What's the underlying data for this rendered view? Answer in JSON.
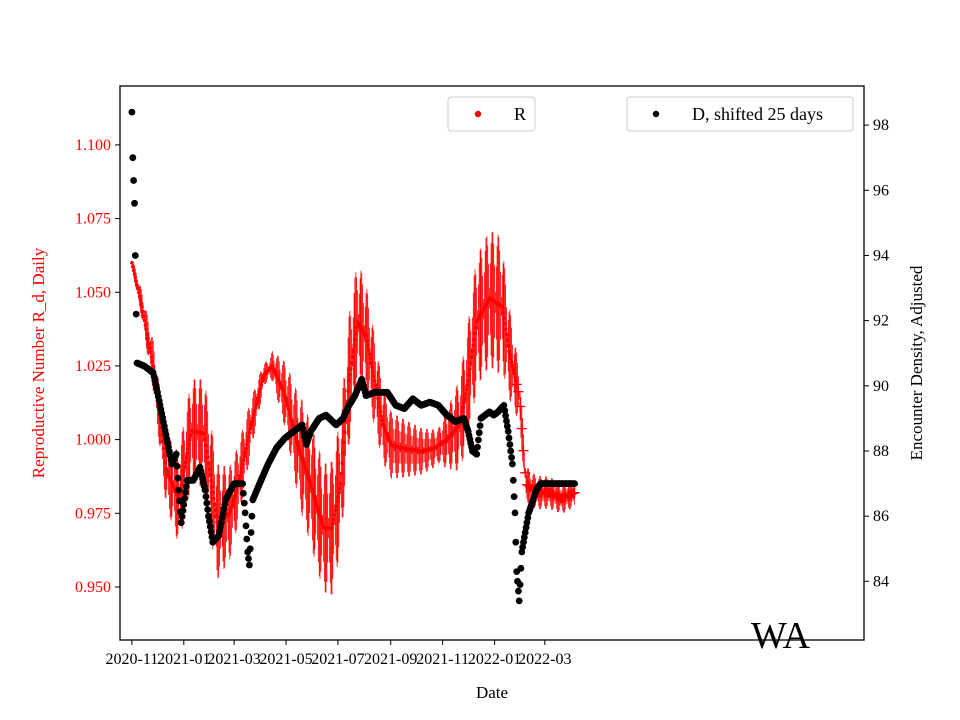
{
  "chart_data": {
    "type": "scatter",
    "region_label": "WA",
    "x_axis": {
      "label": "Date",
      "range_days": [
        -14,
        860
      ],
      "ticks": [
        {
          "label": "2020-11",
          "day": 0
        },
        {
          "label": "2021-01",
          "day": 61
        },
        {
          "label": "2021-03",
          "day": 120
        },
        {
          "label": "2021-05",
          "day": 181
        },
        {
          "label": "2021-07",
          "day": 242
        },
        {
          "label": "2021-09",
          "day": 304
        },
        {
          "label": "2021-11",
          "day": 365
        },
        {
          "label": "2022-01",
          "day": 426
        },
        {
          "label": "2022-03",
          "day": 485
        }
      ]
    },
    "left_axis": {
      "label": "Reproductive Number R_d, Daily",
      "range": [
        0.932,
        1.12
      ],
      "ticks": [
        "0.950",
        "0.975",
        "1.000",
        "1.025",
        "1.050",
        "1.075",
        "1.100"
      ],
      "color": "#ff0000"
    },
    "right_axis": {
      "label": "Encounter Density, Adjusted",
      "range": [
        82.2,
        99.2
      ],
      "ticks": [
        "84",
        "86",
        "88",
        "90",
        "92",
        "94",
        "96",
        "98"
      ],
      "color": "#000000"
    },
    "legend": [
      {
        "name": "R",
        "color": "#ff0000"
      },
      {
        "name": "D, shifted 25 days",
        "color": "#000000"
      }
    ],
    "series": [
      {
        "name": "R",
        "axis": "left",
        "color": "#ff0000",
        "error_bars": true,
        "note": "daily R with oscillating error bars; after 2022-01-25 plotted as crosses",
        "day_range": [
          0,
          520
        ],
        "knots": [
          [
            0,
            1.06
          ],
          [
            12,
            1.045
          ],
          [
            25,
            1.025
          ],
          [
            40,
            0.99
          ],
          [
            55,
            0.98
          ],
          [
            70,
            1.003
          ],
          [
            85,
            1.002
          ],
          [
            100,
            0.972
          ],
          [
            115,
            0.975
          ],
          [
            125,
            0.985
          ],
          [
            140,
            1.005
          ],
          [
            155,
            1.022
          ],
          [
            165,
            1.025
          ],
          [
            180,
            1.015
          ],
          [
            195,
            0.998
          ],
          [
            210,
            0.985
          ],
          [
            225,
            0.97
          ],
          [
            235,
            0.97
          ],
          [
            245,
            0.985
          ],
          [
            255,
            1.02
          ],
          [
            265,
            1.04
          ],
          [
            275,
            1.035
          ],
          [
            285,
            1.02
          ],
          [
            295,
            1.005
          ],
          [
            305,
            0.998
          ],
          [
            320,
            0.997
          ],
          [
            340,
            0.996
          ],
          [
            355,
            0.997
          ],
          [
            370,
            1.0
          ],
          [
            385,
            1.005
          ],
          [
            395,
            1.02
          ],
          [
            405,
            1.04
          ],
          [
            420,
            1.048
          ],
          [
            435,
            1.045
          ],
          [
            443,
            1.03
          ],
          [
            455,
            1.015
          ],
          [
            463,
            0.985
          ],
          [
            475,
            0.982
          ],
          [
            490,
            0.982
          ],
          [
            505,
            0.98
          ],
          [
            520,
            0.982
          ]
        ],
        "error_half_width": [
          [
            0,
            0.002
          ],
          [
            30,
            0.01
          ],
          [
            60,
            0.017
          ],
          [
            100,
            0.02
          ],
          [
            130,
            0.012
          ],
          [
            160,
            0.003
          ],
          [
            200,
            0.02
          ],
          [
            235,
            0.023
          ],
          [
            260,
            0.022
          ],
          [
            300,
            0.012
          ],
          [
            360,
            0.006
          ],
          [
            400,
            0.022
          ],
          [
            430,
            0.024
          ],
          [
            450,
            0.012
          ],
          [
            462,
            0.006
          ],
          [
            520,
            0.005
          ]
        ]
      },
      {
        "name": "D, shifted 25 days",
        "axis": "right",
        "color": "#000000",
        "marker": "dot",
        "day_range": [
          0,
          520
        ],
        "knots": [
          [
            0,
            98.4
          ],
          [
            1,
            97.0
          ],
          [
            2,
            96.3
          ],
          [
            3,
            95.6
          ],
          [
            4,
            94.0
          ],
          [
            5,
            92.2
          ],
          [
            6,
            90.7
          ],
          [
            15,
            90.6
          ],
          [
            25,
            90.4
          ],
          [
            30,
            89.8
          ],
          [
            40,
            88.5
          ],
          [
            47,
            87.6
          ],
          [
            52,
            87.9
          ],
          [
            55,
            86.8
          ],
          [
            58,
            85.8
          ],
          [
            65,
            87.1
          ],
          [
            72,
            87.1
          ],
          [
            80,
            87.5
          ],
          [
            86,
            86.8
          ],
          [
            90,
            86.0
          ],
          [
            95,
            85.2
          ],
          [
            102,
            85.4
          ],
          [
            110,
            86.5
          ],
          [
            120,
            87.0
          ],
          [
            130,
            87.0
          ],
          [
            133,
            86.1
          ],
          [
            136,
            84.9
          ],
          [
            138,
            84.5
          ],
          [
            142,
            86.5
          ],
          [
            150,
            87.0
          ],
          [
            160,
            87.6
          ],
          [
            170,
            88.1
          ],
          [
            180,
            88.4
          ],
          [
            190,
            88.6
          ],
          [
            200,
            88.8
          ],
          [
            205,
            88.2
          ],
          [
            210,
            88.6
          ],
          [
            220,
            89.0
          ],
          [
            228,
            89.1
          ],
          [
            240,
            88.8
          ],
          [
            248,
            89.0
          ],
          [
            255,
            89.4
          ],
          [
            262,
            89.7
          ],
          [
            270,
            90.2
          ],
          [
            275,
            89.7
          ],
          [
            285,
            89.8
          ],
          [
            300,
            89.8
          ],
          [
            310,
            89.4
          ],
          [
            320,
            89.3
          ],
          [
            330,
            89.6
          ],
          [
            340,
            89.4
          ],
          [
            350,
            89.5
          ],
          [
            360,
            89.4
          ],
          [
            370,
            89.1
          ],
          [
            380,
            88.9
          ],
          [
            390,
            89.0
          ],
          [
            395,
            88.6
          ],
          [
            400,
            88.0
          ],
          [
            405,
            87.9
          ],
          [
            410,
            89.0
          ],
          [
            420,
            89.2
          ],
          [
            425,
            89.1
          ],
          [
            430,
            89.2
          ],
          [
            437,
            89.4
          ],
          [
            442,
            88.6
          ],
          [
            447,
            87.6
          ],
          [
            450,
            86.1
          ],
          [
            452,
            84.3
          ],
          [
            455,
            83.4
          ],
          [
            458,
            84.9
          ],
          [
            462,
            85.5
          ],
          [
            466,
            86.1
          ],
          [
            470,
            86.4
          ],
          [
            475,
            86.8
          ],
          [
            480,
            87.0
          ],
          [
            485,
            87.0
          ],
          [
            520,
            87.0
          ]
        ]
      }
    ]
  }
}
